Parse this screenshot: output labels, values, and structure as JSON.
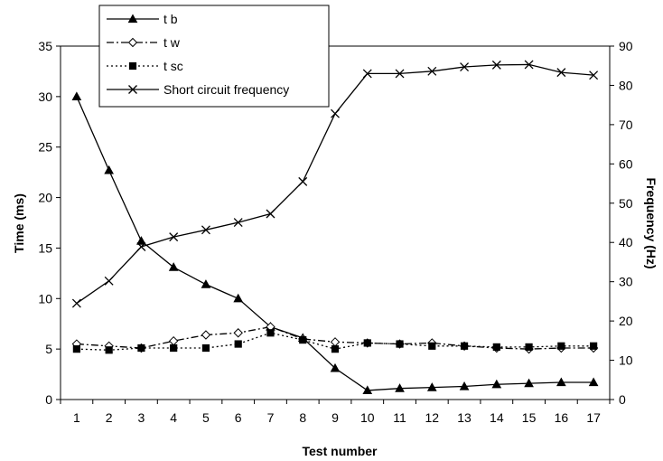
{
  "chart_data": {
    "type": "line",
    "title": "",
    "xlabel": "Test number",
    "ylabel": "Time (ms)",
    "y2label": "Frequency (Hz)",
    "categories": [
      1,
      2,
      3,
      4,
      5,
      6,
      7,
      8,
      9,
      10,
      11,
      12,
      13,
      14,
      15,
      16,
      17
    ],
    "ylim": [
      0,
      35
    ],
    "y2lim": [
      0,
      90
    ],
    "yticks": [
      0,
      5,
      10,
      15,
      20,
      25,
      30,
      35
    ],
    "y2ticks": [
      0,
      10,
      20,
      30,
      40,
      50,
      60,
      70,
      80,
      90
    ],
    "grid": false,
    "legend_position": "top-left",
    "series": [
      {
        "name": "t b",
        "axis": "left",
        "marker": "triangle",
        "dash": "solid",
        "values": [
          30.0,
          22.7,
          15.7,
          13.1,
          11.4,
          10.0,
          7.2,
          6.1,
          3.1,
          0.9,
          1.1,
          1.2,
          1.3,
          1.5,
          1.6,
          1.7,
          1.7
        ]
      },
      {
        "name": "t w",
        "axis": "left",
        "marker": "diamond",
        "dash": "dashdot",
        "values": [
          5.5,
          5.3,
          5.1,
          5.8,
          6.4,
          6.6,
          7.2,
          6.0,
          5.7,
          5.6,
          5.5,
          5.6,
          5.3,
          5.1,
          5.0,
          5.1,
          5.1
        ]
      },
      {
        "name": "t sc",
        "axis": "left",
        "marker": "square",
        "dash": "dotted",
        "values": [
          5.0,
          4.9,
          5.1,
          5.1,
          5.1,
          5.5,
          6.6,
          5.9,
          5.0,
          5.6,
          5.5,
          5.3,
          5.3,
          5.2,
          5.2,
          5.3,
          5.3
        ]
      },
      {
        "name": "Short circuit frequency",
        "axis": "right",
        "marker": "x",
        "dash": "solid",
        "values": [
          24.5,
          30.2,
          38.9,
          41.4,
          43.2,
          45.1,
          47.3,
          55.5,
          72.8,
          83.0,
          83.0,
          83.6,
          84.7,
          85.2,
          85.3,
          83.3,
          82.6
        ]
      }
    ]
  }
}
